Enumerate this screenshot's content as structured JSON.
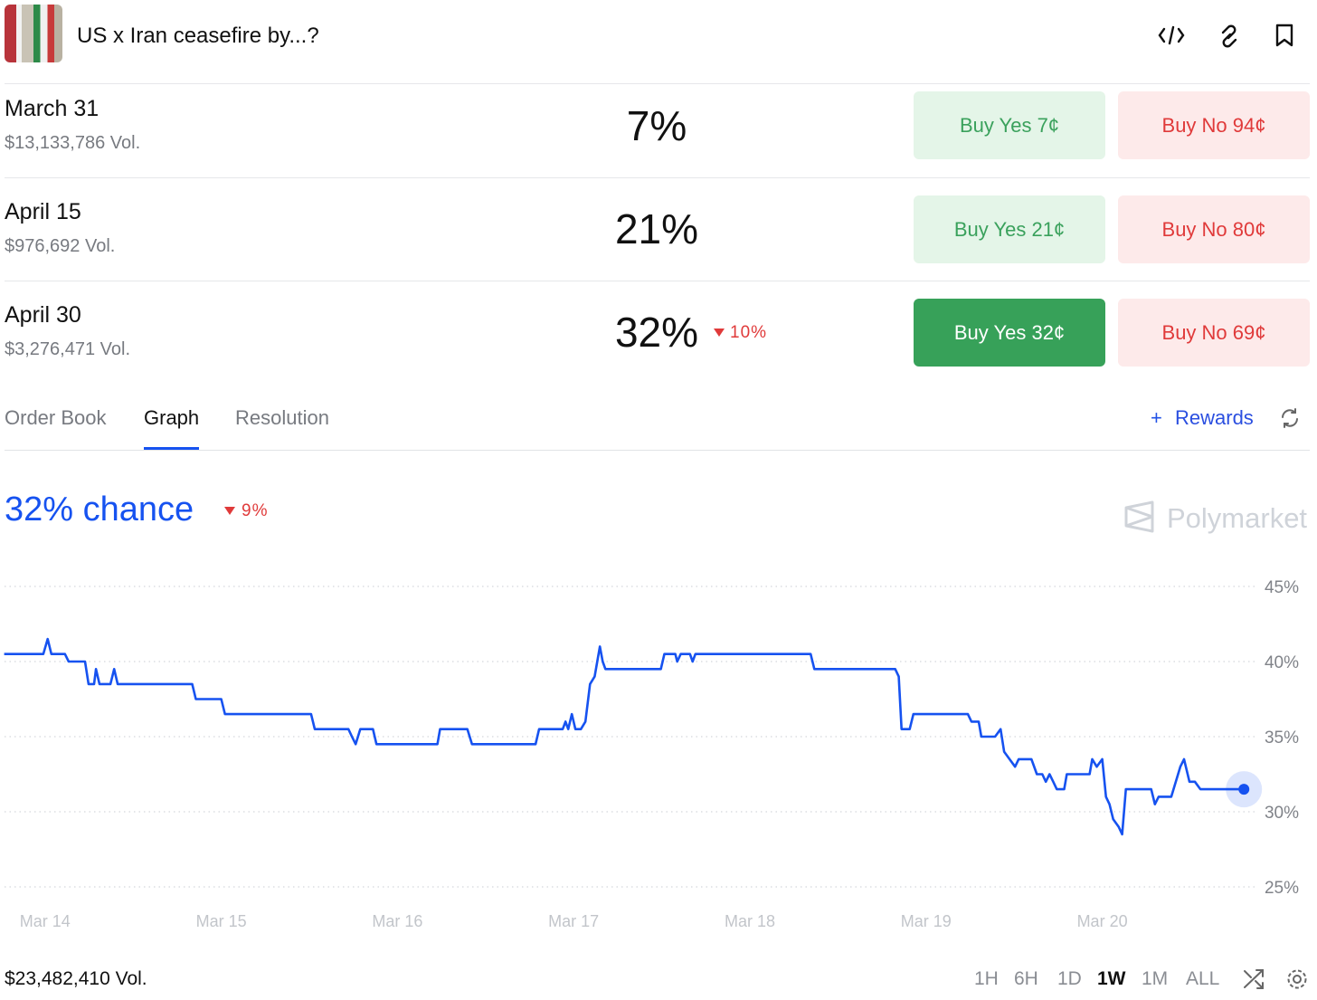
{
  "header": {
    "title": "US x Iran ceasefire by...?"
  },
  "outcomes": [
    {
      "date": "March 31",
      "volume": "$13,133,786 Vol.",
      "chance": "7%",
      "buy_yes": "Buy Yes 7¢",
      "buy_no": "Buy No 94¢"
    },
    {
      "date": "April 15",
      "volume": "$976,692 Vol.",
      "chance": "21%",
      "buy_yes": "Buy Yes 21¢",
      "buy_no": "Buy No 80¢"
    },
    {
      "date": "April 30",
      "volume": "$3,276,471 Vol.",
      "chance": "32%",
      "change": "10%",
      "buy_yes": "Buy Yes 32¢",
      "buy_no": "Buy No 69¢"
    }
  ],
  "tabs": [
    "Order Book",
    "Graph",
    "Resolution"
  ],
  "selected_tab": 1,
  "rewards": "Rewards",
  "chart_data": {
    "type": "line",
    "title": "32% chance",
    "change": "9%",
    "watermark": "Polymarket",
    "x": [
      13.768,
      13.99,
      14.015,
      14.036,
      14.113,
      14.134,
      14.227,
      14.247,
      14.278,
      14.289,
      14.309,
      14.371,
      14.392,
      14.412,
      14.835,
      14.856,
      15.0,
      15.021,
      15.51,
      15.531,
      15.722,
      15.742,
      15.763,
      15.789,
      15.861,
      15.881,
      16.227,
      16.242,
      16.397,
      16.423,
      16.784,
      16.804,
      16.938,
      16.954,
      16.969,
      16.99,
      17.01,
      17.041,
      17.067,
      17.093,
      17.119,
      17.134,
      17.149,
      17.165,
      17.18,
      17.495,
      17.515,
      17.557,
      17.577,
      17.588,
      17.608,
      17.66,
      17.675,
      17.691,
      18.345,
      18.366,
      18.825,
      18.845,
      18.861,
      18.907,
      18.928,
      19.237,
      19.258,
      19.299,
      19.314,
      19.392,
      19.423,
      19.443,
      19.474,
      19.505,
      19.526,
      19.598,
      19.629,
      19.66,
      19.68,
      19.701,
      19.722,
      19.742,
      19.784,
      19.799,
      19.928,
      19.943,
      19.969,
      20.0,
      20.021,
      20.041,
      20.062,
      20.093,
      20.113,
      20.134,
      20.278,
      20.299,
      20.32,
      20.392,
      20.443,
      20.464,
      20.495,
      20.526,
      20.557,
      20.804
    ],
    "series": [
      {
        "color": "#1652f0",
        "values": [
          40.5,
          40.5,
          41.5,
          40.5,
          40.5,
          40.0,
          40.0,
          38.5,
          38.5,
          39.5,
          38.5,
          38.5,
          39.5,
          38.5,
          38.5,
          37.5,
          37.5,
          36.5,
          36.5,
          35.5,
          35.5,
          35.0,
          34.5,
          35.5,
          35.5,
          34.5,
          34.5,
          35.5,
          35.5,
          34.5,
          34.5,
          35.5,
          35.5,
          36.0,
          35.5,
          36.5,
          35.5,
          35.5,
          36.0,
          38.5,
          39.0,
          40.0,
          41.0,
          40.0,
          39.5,
          39.5,
          40.5,
          40.5,
          40.5,
          40.0,
          40.5,
          40.5,
          40.0,
          40.5,
          40.5,
          39.5,
          39.5,
          39.0,
          35.5,
          35.5,
          36.5,
          36.5,
          36.0,
          36.0,
          35.0,
          35.0,
          35.5,
          34.0,
          33.5,
          33.0,
          33.5,
          33.5,
          32.5,
          32.5,
          32.0,
          32.5,
          32.0,
          31.5,
          31.5,
          32.5,
          32.5,
          33.5,
          33.0,
          33.5,
          31.0,
          30.5,
          29.5,
          29.0,
          28.5,
          31.5,
          31.5,
          30.5,
          31.0,
          31.0,
          33.0,
          33.5,
          32.0,
          32.0,
          31.5,
          31.5
        ]
      }
    ],
    "xlim": [
      13.77,
      20.88
    ],
    "xticks": [
      {
        "value": 14,
        "label": "Mar 14"
      },
      {
        "value": 15,
        "label": "Mar 15"
      },
      {
        "value": 16,
        "label": "Mar 16"
      },
      {
        "value": 17,
        "label": "Mar 17"
      },
      {
        "value": 18,
        "label": "Mar 18"
      },
      {
        "value": 19,
        "label": "Mar 19"
      },
      {
        "value": 20,
        "label": "Mar 20"
      }
    ],
    "ylim": [
      25,
      45
    ],
    "yticks": [
      {
        "value": 25,
        "label": "25%"
      },
      {
        "value": 30,
        "label": "30%"
      },
      {
        "value": 35,
        "label": "35%"
      },
      {
        "value": 40,
        "label": "40%"
      },
      {
        "value": 45,
        "label": "45%"
      }
    ],
    "grid": true
  },
  "footer": {
    "volume": "$23,482,410 Vol.",
    "ranges": [
      "1H",
      "6H",
      "1D",
      "1W",
      "1M",
      "ALL"
    ],
    "selected_range": 3
  }
}
